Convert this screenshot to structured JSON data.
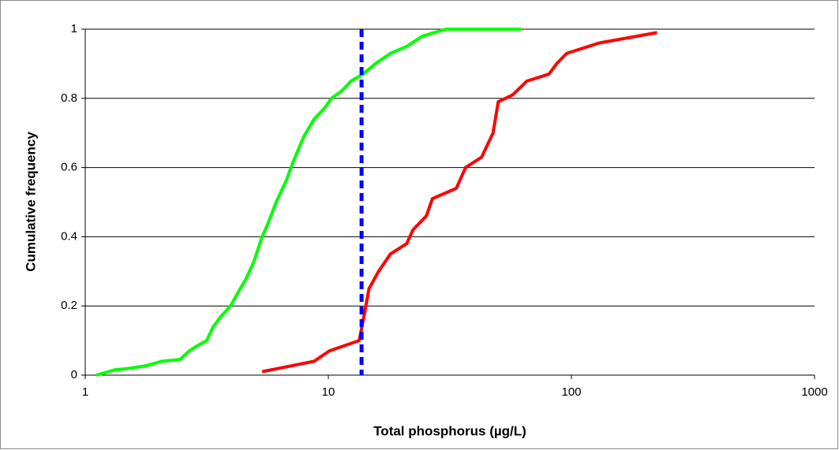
{
  "chart_data": {
    "type": "line",
    "x_label": "Total phosphorus (µg/L)",
    "y_label": "Cumulative frequency",
    "xscale": "log",
    "xlim": [
      1,
      1000
    ],
    "xticks": [
      1,
      10,
      100,
      1000
    ],
    "ylim": [
      0,
      1
    ],
    "yticks": [
      0,
      0.2,
      0.4,
      0.6,
      0.8,
      1
    ],
    "grid": true,
    "series": [
      {
        "color": "#00ff00",
        "x": [
          1.11,
          1.18,
          1.32,
          1.53,
          1.78,
          2.06,
          2.45,
          2.68,
          2.89,
          3.16,
          3.36,
          3.62,
          3.96,
          4.26,
          4.6,
          4.95,
          5.34,
          5.66,
          6.1,
          6.69,
          7.2,
          7.93,
          8.74,
          9.6,
          10.3,
          11.3,
          12.4,
          13.9,
          15.6,
          18.0,
          21.0,
          24.4,
          30.5,
          62
        ],
        "values": [
          0,
          0.005,
          0.015,
          0.02,
          0.027,
          0.04,
          0.045,
          0.07,
          0.085,
          0.1,
          0.14,
          0.17,
          0.2,
          0.24,
          0.28,
          0.33,
          0.4,
          0.44,
          0.5,
          0.56,
          0.62,
          0.69,
          0.74,
          0.77,
          0.8,
          0.82,
          0.85,
          0.87,
          0.9,
          0.93,
          0.95,
          0.98,
          1,
          1
        ]
      },
      {
        "color": "#ff0000",
        "x": [
          5.34,
          8.74,
          10.1,
          13.4,
          14.1,
          14.7,
          16.1,
          18.0,
          21.0,
          22.3,
          25.3,
          26.8,
          33.6,
          36.7,
          42.7,
          47.6,
          50.0,
          57.3,
          65.6,
          80.8,
          86.9,
          95.6,
          130,
          225
        ],
        "values": [
          0.01,
          0.04,
          0.07,
          0.1,
          0.18,
          0.25,
          0.3,
          0.35,
          0.38,
          0.42,
          0.46,
          0.51,
          0.54,
          0.6,
          0.63,
          0.7,
          0.79,
          0.81,
          0.85,
          0.87,
          0.9,
          0.93,
          0.96,
          0.99
        ]
      }
    ],
    "vlines": [
      {
        "x": 13.7,
        "color": "#0000ff",
        "dash": true
      }
    ]
  }
}
